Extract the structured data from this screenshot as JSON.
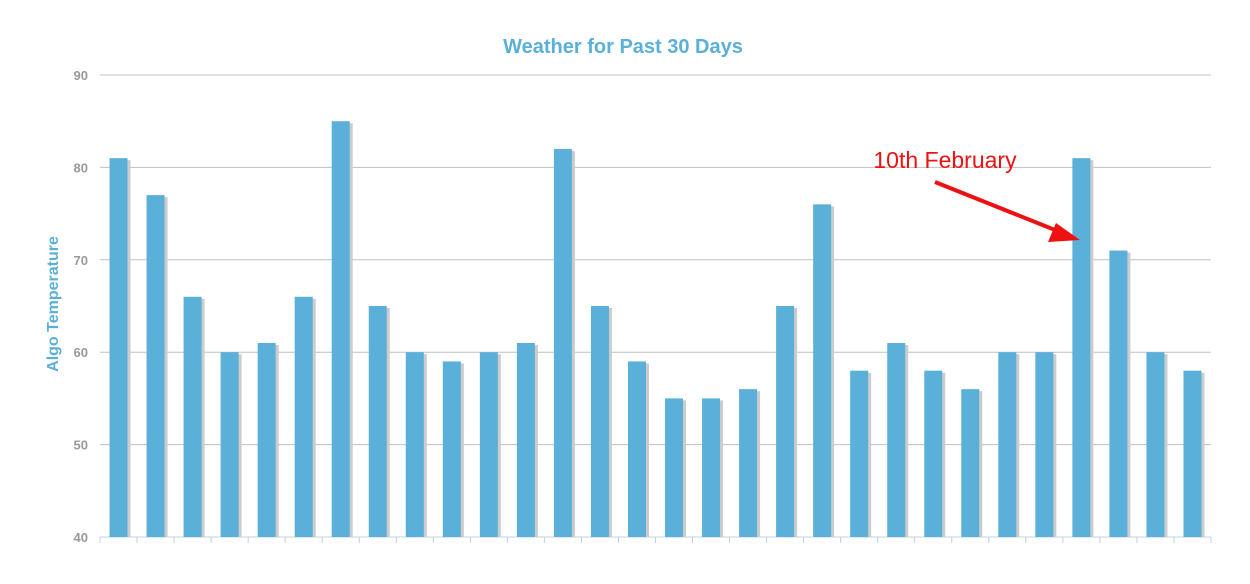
{
  "chart_data": {
    "type": "bar",
    "title": "Weather for Past 30 Days",
    "xlabel": "",
    "ylabel": "Algo Temperature",
    "ylim": [
      40,
      90
    ],
    "yticks": [
      40,
      50,
      60,
      70,
      80,
      90
    ],
    "grid": true,
    "legend": "none",
    "values": [
      81,
      77,
      66,
      60,
      61,
      66,
      85,
      65,
      60,
      59,
      60,
      61,
      82,
      65,
      59,
      55,
      55,
      56,
      65,
      76,
      58,
      61,
      58,
      56,
      60,
      60,
      81,
      71,
      60,
      58
    ],
    "annotations": [
      {
        "text": "10th February",
        "target_index": 26
      }
    ]
  },
  "colors": {
    "bar": "#5ab0d8",
    "bar_shadow": "#cccccc",
    "title": "#5ab0d8",
    "ylabel": "#5ab0d8",
    "grid": "#c0c0c0",
    "axis": "#c0d0e0",
    "annotation": "#ee1111"
  }
}
